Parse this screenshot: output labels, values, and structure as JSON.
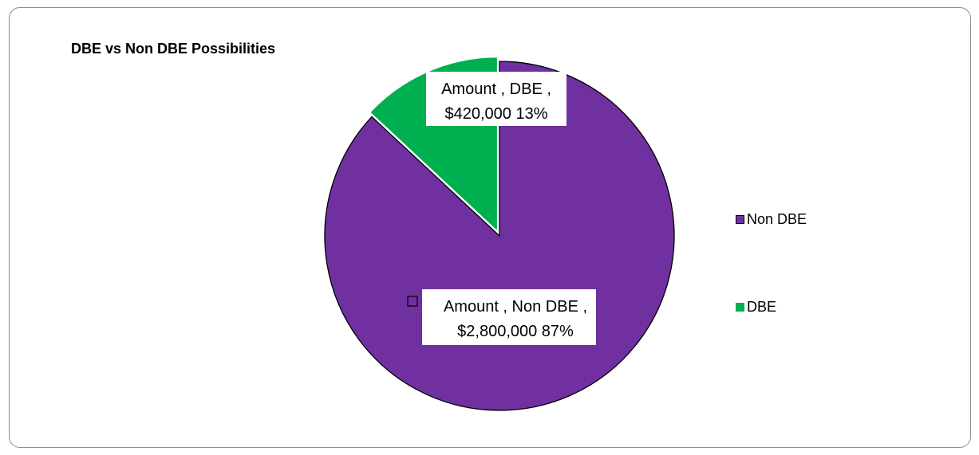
{
  "chart_data": {
    "type": "pie",
    "title": "DBE vs Non DBE Possibilities",
    "series_label": "Amount",
    "slices": [
      {
        "name": "Non DBE",
        "value": 2800000,
        "value_label": "$2,800,000",
        "percent_label": "87%",
        "color": "#7030a0"
      },
      {
        "name": "DBE",
        "value": 420000,
        "value_label": "$420,000",
        "percent_label": "13%",
        "color": "#00b050"
      }
    ],
    "legend_position": "right",
    "data_labels": [
      {
        "line1": "Amount , DBE ,",
        "line2": "$420,000 13%"
      },
      {
        "line1": "Amount , Non DBE ,",
        "line2": "$2,800,000 87%"
      }
    ]
  }
}
